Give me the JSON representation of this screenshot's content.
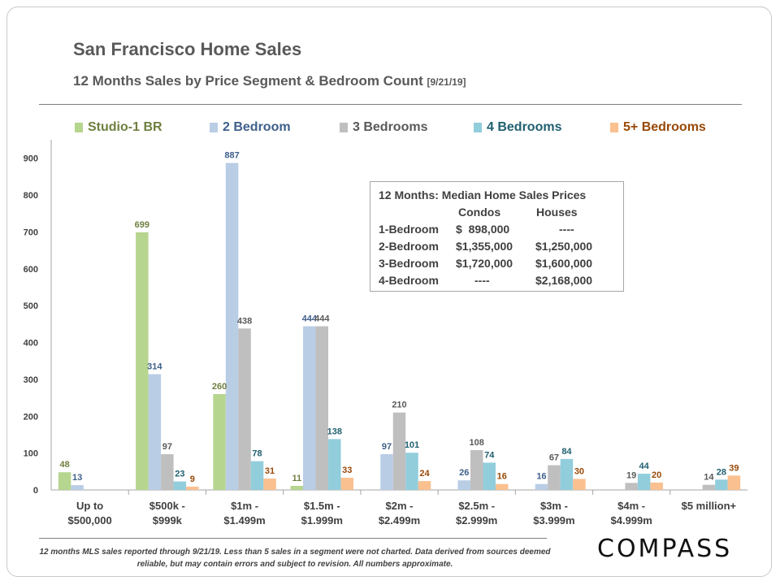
{
  "header": {
    "title": "San Francisco Home Sales",
    "subtitle": "12 Months Sales by Price Segment & Bedroom Count",
    "date": "[9/21/19]"
  },
  "info_box": {
    "title": "12 Months: Median Home Sales Prices",
    "col_condos": "Condos",
    "col_houses": "Houses",
    "rows": [
      {
        "label": "1-Bedroom",
        "condos": "$  898,000",
        "houses": "----"
      },
      {
        "label": "2-Bedroom",
        "condos": "$1,355,000",
        "houses": "$1,250,000"
      },
      {
        "label": "3-Bedroom",
        "condos": "$1,720,000",
        "houses": "$1,600,000"
      },
      {
        "label": "4-Bedroom",
        "condos": "----",
        "houses": "$2,168,000"
      }
    ]
  },
  "footnote": "12 months MLS sales reported through 9/21/19. Less than 5 sales in a segment were not charted. Data derived from sources deemed reliable, but may contain errors and subject to revision. All numbers approximate.",
  "logo": "COMPASS",
  "chart_data": {
    "type": "bar",
    "categories": [
      [
        "Up to",
        "$500,000"
      ],
      [
        "$500k -",
        "$999k"
      ],
      [
        "$1m -",
        "$1.499m"
      ],
      [
        "$1.5m -",
        "$1.999m"
      ],
      [
        "$2m -",
        "$2.499m"
      ],
      [
        "$2.5m -",
        "$2.999m"
      ],
      [
        "$3m -",
        "$3.999m"
      ],
      [
        "$4m -",
        "$4.999m"
      ],
      [
        "$5 million+"
      ]
    ],
    "series": [
      {
        "name": "Studio-1 BR",
        "color": "#b6d58f",
        "label_color": "#6f7f3f",
        "values": [
          48,
          699,
          260,
          11,
          null,
          null,
          null,
          null,
          null
        ]
      },
      {
        "name": "2 Bedroom",
        "color": "#b9cde5",
        "label_color": "#3e5f8a",
        "values": [
          13,
          314,
          887,
          444,
          97,
          26,
          16,
          null,
          null
        ]
      },
      {
        "name": "3 Bedrooms",
        "color": "#bfbfbf",
        "label_color": "#595959",
        "values": [
          null,
          97,
          438,
          444,
          210,
          108,
          67,
          19,
          14
        ]
      },
      {
        "name": "4 Bedrooms",
        "color": "#92cddc",
        "label_color": "#1f5f6f",
        "values": [
          null,
          23,
          78,
          138,
          101,
          74,
          84,
          44,
          28
        ]
      },
      {
        "name": "5+ Bedrooms",
        "color": "#fac090",
        "label_color": "#984807",
        "values": [
          null,
          9,
          31,
          33,
          24,
          16,
          30,
          20,
          39
        ]
      }
    ],
    "y_ticks": [
      0,
      100,
      200,
      300,
      400,
      500,
      600,
      700,
      800,
      900
    ],
    "ylim": [
      0,
      950
    ],
    "grid": false,
    "legend": "top"
  }
}
